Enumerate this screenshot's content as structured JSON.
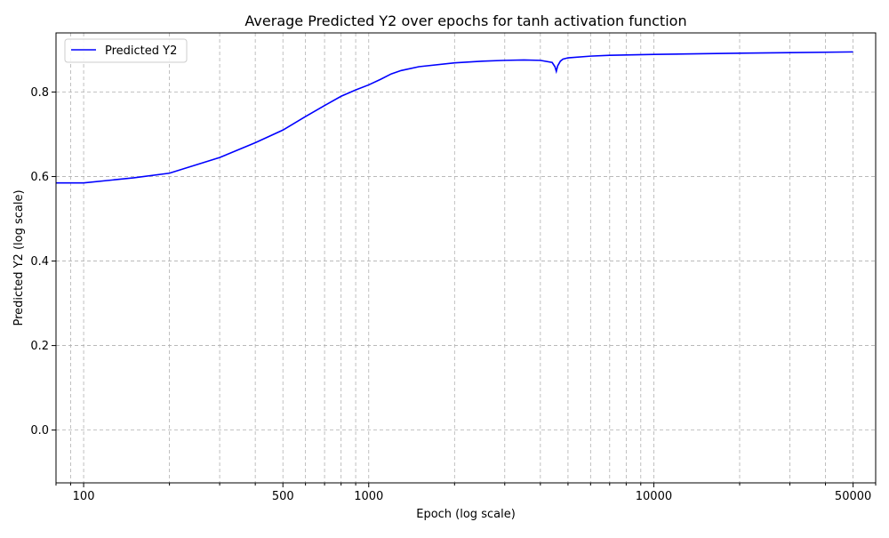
{
  "chart_data": {
    "type": "line",
    "title": "Average Predicted Y2 over epochs for tanh activation function",
    "xlabel": "Epoch (log scale)",
    "ylabel": "Predicted Y2 (log scale)",
    "xscale": "log",
    "xlim": [
      80,
      60000
    ],
    "ylim": [
      -0.125,
      0.94
    ],
    "x_tick_labels": [
      {
        "value": 100,
        "label": "100"
      },
      {
        "value": 500,
        "label": "500"
      },
      {
        "value": 1000,
        "label": "1000"
      },
      {
        "value": 10000,
        "label": "10000"
      },
      {
        "value": 50000,
        "label": "50000"
      }
    ],
    "x_minor_ticks": [
      80,
      90,
      200,
      300,
      400,
      600,
      700,
      800,
      900,
      2000,
      3000,
      4000,
      5000,
      6000,
      7000,
      8000,
      9000,
      20000,
      30000,
      40000,
      60000
    ],
    "y_ticks": [
      {
        "value": 0.0,
        "label": "0.0"
      },
      {
        "value": 0.2,
        "label": "0.2"
      },
      {
        "value": 0.4,
        "label": "0.4"
      },
      {
        "value": 0.6,
        "label": "0.6"
      },
      {
        "value": 0.8,
        "label": "0.8"
      }
    ],
    "grid": true,
    "legend_position": "top-left",
    "series": [
      {
        "name": "Predicted Y2",
        "color": "#0000ff",
        "x": [
          80,
          100,
          150,
          200,
          300,
          400,
          500,
          600,
          700,
          800,
          900,
          1000,
          1100,
          1200,
          1300,
          1500,
          2000,
          2500,
          3000,
          3500,
          4000,
          4400,
          4500,
          4550,
          4600,
          4700,
          4800,
          5000,
          6000,
          7000,
          10000,
          20000,
          50000
        ],
        "y": [
          0.585,
          0.585,
          0.597,
          0.608,
          0.645,
          0.68,
          0.71,
          0.742,
          0.768,
          0.79,
          0.805,
          0.817,
          0.83,
          0.843,
          0.851,
          0.86,
          0.869,
          0.873,
          0.875,
          0.876,
          0.875,
          0.87,
          0.86,
          0.849,
          0.862,
          0.873,
          0.878,
          0.881,
          0.885,
          0.887,
          0.889,
          0.892,
          0.895
        ]
      }
    ]
  }
}
